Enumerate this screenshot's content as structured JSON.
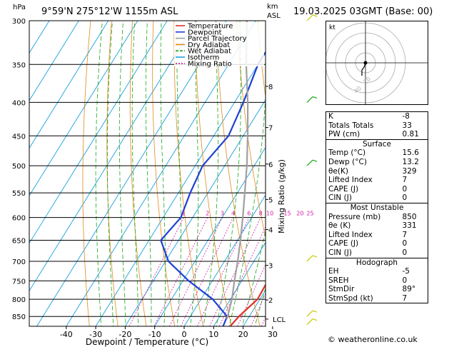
{
  "header": {
    "pressure_unit": "hPa",
    "location": "9°59'N 275°12'W 1155m ASL",
    "height_unit_line1": "km",
    "height_unit_line2": "ASL",
    "datetime": "19.03.2025 03GMT (Base: 00)"
  },
  "chart_data": {
    "type": "line",
    "xlabel": "Dewpoint / Temperature (°C)",
    "ylabel_right": "Mixing Ratio (g/kg)",
    "x_ticks": [
      -40,
      -30,
      -20,
      -10,
      0,
      10,
      20,
      30
    ],
    "xlim": [
      -43,
      37
    ],
    "pressure_levels": [
      300,
      350,
      400,
      450,
      500,
      550,
      600,
      650,
      700,
      750,
      800,
      850
    ],
    "ylim": [
      300,
      880
    ],
    "altitude_ticks": [
      {
        "km": "8",
        "p": 378
      },
      {
        "km": "7",
        "p": 437
      },
      {
        "km": "6",
        "p": 497
      },
      {
        "km": "5",
        "p": 563
      },
      {
        "km": "4",
        "p": 626
      },
      {
        "km": "3",
        "p": 710
      },
      {
        "km": "2",
        "p": 802
      },
      {
        "km": "LCL",
        "p": 858
      }
    ],
    "mixing_ratio_labels": [
      "1",
      "2",
      "3",
      "4",
      "6",
      "8",
      "10",
      "15",
      "20",
      "25"
    ],
    "mixing_ratio_values": [
      1,
      2,
      3,
      4,
      6,
      8,
      10,
      15,
      20,
      25
    ],
    "legend": [
      "Temperature",
      "Dewpoint",
      "Parcel Trajectory",
      "Dry Adiabat",
      "Wet Adiabat",
      "Isotherm",
      "Mixing Ratio"
    ],
    "colors": {
      "temperature": "#e0302a",
      "dewpoint": "#1e3fd6",
      "parcel": "#a0a0a0",
      "dry_adiabat": "#e08a1a",
      "wet_adiabat": "#1aa81a",
      "isotherm": "#1aa0e0",
      "mixing_ratio": "#d01aa8"
    },
    "series": [
      {
        "name": "Temperature",
        "points": [
          {
            "p": 880,
            "t": 15.6
          },
          {
            "p": 850,
            "t": 16.5
          },
          {
            "p": 800,
            "t": 19.2
          },
          {
            "p": 750,
            "t": 18.8
          },
          {
            "p": 700,
            "t": 15.8
          },
          {
            "p": 650,
            "t": 13.0
          },
          {
            "p": 600,
            "t": 9.6
          },
          {
            "p": 550,
            "t": 5.8
          },
          {
            "p": 500,
            "t": 1.4
          },
          {
            "p": 450,
            "t": -4.0
          },
          {
            "p": 400,
            "t": -10.5
          },
          {
            "p": 350,
            "t": -18.5
          },
          {
            "p": 300,
            "t": -28.5
          }
        ]
      },
      {
        "name": "Dewpoint",
        "points": [
          {
            "p": 880,
            "t": 13.2
          },
          {
            "p": 850,
            "t": 12.5
          },
          {
            "p": 800,
            "t": 4.0
          },
          {
            "p": 750,
            "t": -8.0
          },
          {
            "p": 700,
            "t": -19.0
          },
          {
            "p": 650,
            "t": -26.0
          },
          {
            "p": 600,
            "t": -24.0
          },
          {
            "p": 550,
            "t": -26.0
          },
          {
            "p": 500,
            "t": -27.5
          },
          {
            "p": 450,
            "t": -25.0
          },
          {
            "p": 400,
            "t": -27.0
          },
          {
            "p": 350,
            "t": -30.0
          },
          {
            "p": 300,
            "t": -30.0
          }
        ]
      },
      {
        "name": "Parcel Trajectory",
        "points": [
          {
            "p": 858,
            "t": 13.0
          },
          {
            "p": 800,
            "t": 10.5
          },
          {
            "p": 750,
            "t": 7.5
          },
          {
            "p": 700,
            "t": 4.5
          },
          {
            "p": 650,
            "t": 1.0
          },
          {
            "p": 600,
            "t": -3.0
          },
          {
            "p": 550,
            "t": -7.5
          },
          {
            "p": 500,
            "t": -12.5
          },
          {
            "p": 450,
            "t": -18.5
          },
          {
            "p": 400,
            "t": -25.5
          },
          {
            "p": 350,
            "t": -34.0
          },
          {
            "p": 300,
            "t": -43.0
          }
        ]
      }
    ]
  },
  "hodograph": {
    "label": "kt",
    "ring_labels": [
      "20",
      "40"
    ]
  },
  "indices": {
    "rows": [
      {
        "label": "K",
        "value": "-8"
      },
      {
        "label": "Totals Totals",
        "value": "33"
      },
      {
        "label": "PW (cm)",
        "value": "0.81"
      }
    ],
    "surface": {
      "title": "Surface",
      "rows": [
        {
          "label": "Temp (°C)",
          "value": "15.6"
        },
        {
          "label": "Dewp (°C)",
          "value": "13.2"
        },
        {
          "label": "θe(K)",
          "value": "329"
        },
        {
          "label": "Lifted Index",
          "value": "7"
        },
        {
          "label": "CAPE (J)",
          "value": "0"
        },
        {
          "label": "CIN (J)",
          "value": "0"
        }
      ]
    },
    "most_unstable": {
      "title": "Most Unstable",
      "rows": [
        {
          "label": "Pressure (mb)",
          "value": "850"
        },
        {
          "label": "θe (K)",
          "value": "331"
        },
        {
          "label": "Lifted Index",
          "value": "7"
        },
        {
          "label": "CAPE (J)",
          "value": "0"
        },
        {
          "label": "CIN (J)",
          "value": "0"
        }
      ]
    },
    "hodograph": {
      "title": "Hodograph",
      "rows": [
        {
          "label": "EH",
          "value": "-5"
        },
        {
          "label": "SREH",
          "value": "0"
        },
        {
          "label": "StmDir",
          "value": "89°"
        },
        {
          "label": "StmSpd (kt)",
          "value": "7"
        }
      ]
    }
  },
  "copyright": "© weatheronline.co.uk"
}
